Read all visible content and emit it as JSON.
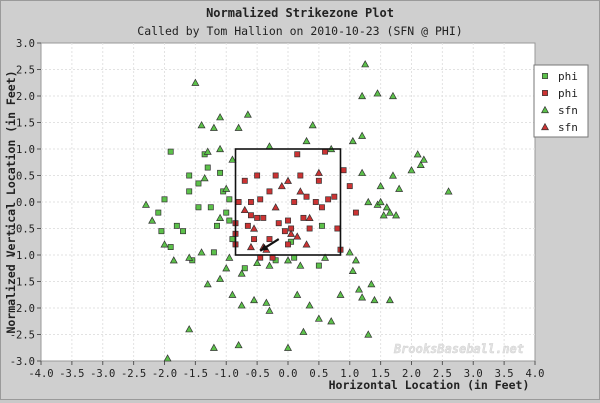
{
  "chart_data": {
    "type": "scatter",
    "title": "Normalized Strikezone Plot",
    "subtitle": "Called by Tom Hallion on 2010-10-23 (SFN @ PHI)",
    "xlabel": "Horizontal Location (in Feet)",
    "ylabel": "Normalized Vertical Location (in Feet)",
    "xlim": [
      -4.0,
      4.0
    ],
    "ylim": [
      -3.0,
      3.0
    ],
    "x_ticks": [
      -4.0,
      -3.5,
      -3.0,
      -2.5,
      -2.0,
      -1.5,
      -1.0,
      -0.5,
      0.0,
      0.5,
      1.0,
      1.5,
      2.0,
      2.5,
      3.0,
      3.5,
      4.0
    ],
    "y_ticks": [
      3.0,
      2.5,
      2.0,
      1.5,
      1.0,
      0.5,
      0.0,
      -0.5,
      -1.0,
      -1.5,
      -2.0,
      -2.5,
      -3.0
    ],
    "x_tick_labels": [
      "-4.0",
      "-3.5",
      "-3.0",
      "-2.5",
      "-2.0",
      "-1.5",
      "-1.0",
      "-0.5",
      "0.0",
      "0.5",
      "1.0",
      "1.5",
      "2.0",
      "2.5",
      "3.0",
      "3.5",
      "4.0"
    ],
    "y_tick_labels": [
      "3.0",
      "2.5",
      "2.0",
      "1.5",
      "1.0",
      "0.5",
      "0.0",
      "-0.5",
      "-1.0",
      "-1.5",
      "-2.0",
      "-2.5",
      "-3.0"
    ],
    "grid": true,
    "legend_position": "right",
    "strike_zone": {
      "x": [
        -0.85,
        0.85
      ],
      "y": [
        -1.0,
        1.0
      ]
    },
    "arrow": {
      "from": [
        -0.15,
        -0.7
      ],
      "to": [
        -0.45,
        -0.92
      ]
    },
    "watermark": "BrooksBaseball.net",
    "series": [
      {
        "name": "phi",
        "marker": "square",
        "color": "#5cc14a",
        "points": [
          [
            -1.9,
            0.95
          ],
          [
            -1.6,
            0.2
          ],
          [
            -1.45,
            0.35
          ],
          [
            -1.35,
            0.9
          ],
          [
            -1.25,
            -0.1
          ],
          [
            -1.1,
            0.55
          ],
          [
            -1.05,
            0.2
          ],
          [
            -0.95,
            -0.35
          ],
          [
            -2.1,
            -0.2
          ],
          [
            -1.9,
            -0.85
          ],
          [
            -1.8,
            -0.45
          ],
          [
            -1.7,
            -0.55
          ],
          [
            -1.55,
            -1.1
          ],
          [
            -1.2,
            -0.95
          ],
          [
            -1.45,
            -0.1
          ],
          [
            -1.15,
            -0.45
          ],
          [
            -1.6,
            0.5
          ],
          [
            -2.05,
            -0.55
          ],
          [
            -0.9,
            -0.7
          ],
          [
            0.05,
            -0.75
          ],
          [
            -0.2,
            -1.1
          ],
          [
            0.1,
            -1.05
          ],
          [
            0.55,
            -0.45
          ],
          [
            -0.7,
            -1.25
          ],
          [
            0.5,
            -1.2
          ],
          [
            -2.0,
            0.05
          ],
          [
            -1.3,
            0.65
          ],
          [
            -1.0,
            -0.2
          ],
          [
            -0.95,
            0.05
          ]
        ]
      },
      {
        "name": "phi",
        "marker": "square",
        "color": "#cc3333",
        "points": [
          [
            -0.85,
            -0.8
          ],
          [
            -0.85,
            -0.6
          ],
          [
            -0.85,
            -0.4
          ],
          [
            -0.8,
            0.0
          ],
          [
            -0.6,
            0.0
          ],
          [
            -0.6,
            -0.25
          ],
          [
            -0.55,
            -0.7
          ],
          [
            -0.5,
            -0.3
          ],
          [
            -0.5,
            0.5
          ],
          [
            -0.4,
            -0.3
          ],
          [
            -0.3,
            -0.7
          ],
          [
            -0.3,
            0.2
          ],
          [
            -0.2,
            0.5
          ],
          [
            -0.15,
            -0.4
          ],
          [
            -0.05,
            -0.55
          ],
          [
            0.0,
            -0.8
          ],
          [
            0.05,
            -0.5
          ],
          [
            0.1,
            0.0
          ],
          [
            0.15,
            0.9
          ],
          [
            0.2,
            0.5
          ],
          [
            0.25,
            -0.3
          ],
          [
            0.3,
            0.1
          ],
          [
            0.35,
            -0.5
          ],
          [
            0.45,
            0.0
          ],
          [
            0.5,
            0.4
          ],
          [
            0.55,
            -0.1
          ],
          [
            0.65,
            0.05
          ],
          [
            0.75,
            0.1
          ],
          [
            0.8,
            -0.5
          ],
          [
            -0.45,
            -1.05
          ],
          [
            -0.25,
            -1.05
          ],
          [
            -0.7,
            0.4
          ],
          [
            0.85,
            -0.9
          ],
          [
            0.9,
            0.6
          ],
          [
            1.0,
            0.3
          ],
          [
            1.1,
            -0.2
          ],
          [
            -0.65,
            -0.45
          ],
          [
            0.6,
            0.95
          ],
          [
            -0.45,
            0.05
          ],
          [
            0.0,
            -0.35
          ]
        ]
      },
      {
        "name": "sfn",
        "marker": "triangle",
        "color": "#5cc14a",
        "points": [
          [
            -1.5,
            2.25
          ],
          [
            -1.2,
            1.4
          ],
          [
            -1.4,
            1.45
          ],
          [
            -0.65,
            1.65
          ],
          [
            -1.1,
            1.6
          ],
          [
            -0.8,
            1.4
          ],
          [
            -1.3,
            0.95
          ],
          [
            -1.1,
            1.0
          ],
          [
            -0.9,
            0.8
          ],
          [
            -1.0,
            0.25
          ],
          [
            -1.35,
            0.45
          ],
          [
            -0.3,
            1.05
          ],
          [
            0.3,
            1.15
          ],
          [
            0.4,
            1.45
          ],
          [
            0.7,
            1.0
          ],
          [
            -2.3,
            -0.05
          ],
          [
            -2.2,
            -0.35
          ],
          [
            -2.0,
            -0.8
          ],
          [
            -1.85,
            -1.1
          ],
          [
            -1.6,
            -1.05
          ],
          [
            -1.4,
            -0.95
          ],
          [
            -1.3,
            -1.55
          ],
          [
            -1.1,
            -1.45
          ],
          [
            -1.0,
            -1.25
          ],
          [
            -0.75,
            -1.35
          ],
          [
            -0.5,
            -1.15
          ],
          [
            -0.3,
            -1.2
          ],
          [
            0.0,
            -1.1
          ],
          [
            0.2,
            -1.2
          ],
          [
            0.6,
            -1.05
          ],
          [
            -0.9,
            -1.75
          ],
          [
            -0.75,
            -1.95
          ],
          [
            -0.55,
            -1.85
          ],
          [
            -0.35,
            -1.9
          ],
          [
            -0.3,
            -2.05
          ],
          [
            0.15,
            -1.75
          ],
          [
            0.35,
            -1.95
          ],
          [
            0.5,
            -2.2
          ],
          [
            0.7,
            -2.25
          ],
          [
            0.25,
            -2.45
          ],
          [
            0.0,
            -2.75
          ],
          [
            -0.8,
            -2.7
          ],
          [
            -1.6,
            -2.4
          ],
          [
            -1.95,
            -2.95
          ],
          [
            -1.2,
            -2.75
          ],
          [
            1.05,
            -1.3
          ],
          [
            1.2,
            -1.8
          ],
          [
            1.4,
            -1.85
          ],
          [
            1.65,
            -1.85
          ],
          [
            1.35,
            -1.55
          ],
          [
            1.15,
            -1.65
          ],
          [
            0.85,
            -1.75
          ],
          [
            1.3,
            -2.5
          ],
          [
            1.1,
            -1.1
          ],
          [
            1.0,
            -0.95
          ],
          [
            1.3,
            0.0
          ],
          [
            1.5,
            0.3
          ],
          [
            1.7,
            0.5
          ],
          [
            1.45,
            -0.05
          ],
          [
            1.6,
            -0.1
          ],
          [
            1.55,
            -0.25
          ],
          [
            1.65,
            -0.2
          ],
          [
            1.75,
            -0.25
          ],
          [
            1.8,
            0.25
          ],
          [
            1.5,
            0.0
          ],
          [
            2.0,
            0.6
          ],
          [
            2.1,
            0.9
          ],
          [
            2.15,
            0.7
          ],
          [
            2.2,
            0.8
          ],
          [
            2.6,
            0.2
          ],
          [
            1.2,
            1.25
          ],
          [
            1.25,
            2.6
          ],
          [
            1.2,
            2.0
          ],
          [
            1.45,
            2.05
          ],
          [
            1.7,
            2.0
          ],
          [
            1.05,
            1.15
          ],
          [
            1.2,
            0.55
          ],
          [
            -1.1,
            -0.3
          ],
          [
            -0.95,
            -1.05
          ]
        ]
      },
      {
        "name": "sfn",
        "marker": "triangle",
        "color": "#cc3333",
        "points": [
          [
            -0.7,
            -0.15
          ],
          [
            -0.55,
            -0.5
          ],
          [
            -0.4,
            -0.85
          ],
          [
            -0.2,
            -0.1
          ],
          [
            0.0,
            0.4
          ],
          [
            0.2,
            0.2
          ],
          [
            0.35,
            -0.3
          ],
          [
            0.15,
            -0.65
          ],
          [
            -0.35,
            -0.9
          ],
          [
            0.5,
            0.55
          ],
          [
            -0.6,
            -0.85
          ],
          [
            0.05,
            -0.6
          ],
          [
            0.3,
            -0.8
          ],
          [
            -0.1,
            0.3
          ]
        ]
      }
    ]
  }
}
